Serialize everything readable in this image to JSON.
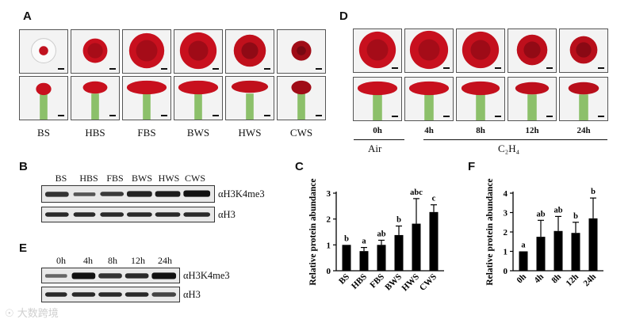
{
  "panels": {
    "A": "A",
    "B": "B",
    "C": "C",
    "D": "D",
    "E": "E",
    "F": "F"
  },
  "panelA": {
    "stages": [
      "BS",
      "HBS",
      "FBS",
      "BWS",
      "HWS",
      "CWS"
    ]
  },
  "panelD": {
    "timepoints": [
      "0h",
      "4h",
      "8h",
      "12h",
      "24h"
    ],
    "group_air": "Air",
    "group_ethylene": "C₂H₄"
  },
  "panelB": {
    "lanes": [
      "BS",
      "HBS",
      "FBS",
      "BWS",
      "HWS",
      "CWS"
    ],
    "blot_top": "αH3K4me3",
    "blot_bottom": "αH3"
  },
  "panelE": {
    "lanes": [
      "0h",
      "4h",
      "8h",
      "12h",
      "24h"
    ],
    "blot_top": "αH3K4me3",
    "blot_bottom": "αH3"
  },
  "chart_data": [
    {
      "type": "bar",
      "panel": "C",
      "categories": [
        "BS",
        "HBS",
        "FBS",
        "BWS",
        "HWS",
        "CWS"
      ],
      "values": [
        1.0,
        0.76,
        1.0,
        1.38,
        1.82,
        2.27
      ],
      "errors": [
        0.0,
        0.14,
        0.18,
        0.35,
        0.97,
        0.28
      ],
      "significance": [
        "b",
        "a",
        "ab",
        "b",
        "abc",
        "c"
      ],
      "ylabel": "Relative protein abundance",
      "ylim": [
        0,
        3
      ],
      "yticks": [
        "0",
        "1",
        "2",
        "3"
      ],
      "bar_color": "#000000"
    },
    {
      "type": "bar",
      "panel": "F",
      "categories": [
        "0h",
        "4h",
        "8h",
        "12h",
        "24h"
      ],
      "values": [
        1.0,
        1.75,
        2.05,
        1.95,
        2.7
      ],
      "errors": [
        0.0,
        0.85,
        0.75,
        0.55,
        1.05
      ],
      "significance": [
        "a",
        "ab",
        "ab",
        "b",
        "b"
      ],
      "ylabel": "Relative protein abundance",
      "ylim": [
        0,
        4
      ],
      "yticks": [
        "0",
        "1",
        "2",
        "3",
        "4"
      ],
      "bar_color": "#000000"
    }
  ],
  "watermark": "大数跨境"
}
